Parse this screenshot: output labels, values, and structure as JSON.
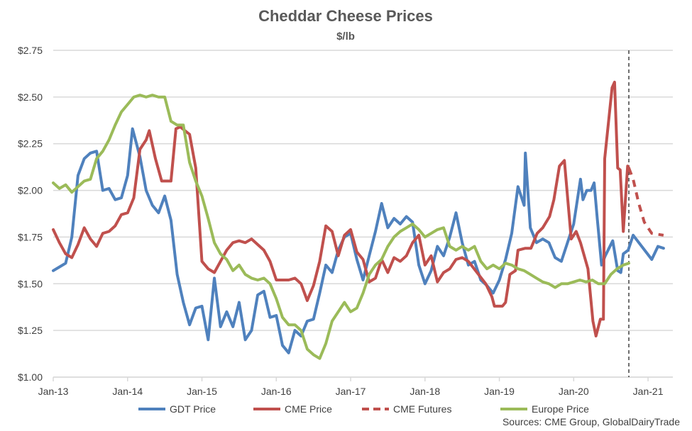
{
  "chart_data": {
    "type": "line",
    "title": "Cheddar Cheese Prices",
    "subtitle": "$/lb",
    "xlabel": "",
    "ylabel": "",
    "x_unit": "months since Jan-13",
    "xlim": [
      0,
      100
    ],
    "ylim": [
      1.0,
      2.75
    ],
    "grid": true,
    "legend_position": "bottom",
    "source": "Sources:  CME Group, GlobalDairyTrade",
    "x_ticks": [
      {
        "m": 0,
        "label": "Jan-13"
      },
      {
        "m": 12,
        "label": "Jan-14"
      },
      {
        "m": 24,
        "label": "Jan-15"
      },
      {
        "m": 36,
        "label": "Jan-16"
      },
      {
        "m": 48,
        "label": "Jan-17"
      },
      {
        "m": 60,
        "label": "Jan-18"
      },
      {
        "m": 72,
        "label": "Jan-19"
      },
      {
        "m": 84,
        "label": "Jan-20"
      },
      {
        "m": 96,
        "label": "Jan-21"
      }
    ],
    "y_ticks": [
      {
        "v": 1.0,
        "label": "$1.00"
      },
      {
        "v": 1.25,
        "label": "$1.25"
      },
      {
        "v": 1.5,
        "label": "$1.50"
      },
      {
        "v": 1.75,
        "label": "$1.75"
      },
      {
        "v": 2.0,
        "label": "$2.00"
      },
      {
        "v": 2.25,
        "label": "$2.25"
      },
      {
        "v": 2.5,
        "label": "$2.50"
      },
      {
        "v": 2.75,
        "label": "$2.75"
      }
    ],
    "forecast_divider_m": 92.9,
    "series": [
      {
        "name": "GDT Price",
        "color": "#4F81BD",
        "dashed": false,
        "points": [
          [
            0,
            1.57
          ],
          [
            1,
            1.59
          ],
          [
            2,
            1.61
          ],
          [
            3,
            1.75
          ],
          [
            4,
            2.08
          ],
          [
            5,
            2.17
          ],
          [
            6,
            2.2
          ],
          [
            7,
            2.21
          ],
          [
            8,
            2.0
          ],
          [
            9,
            2.01
          ],
          [
            10,
            1.95
          ],
          [
            11,
            1.96
          ],
          [
            12,
            2.08
          ],
          [
            12.8,
            2.33
          ],
          [
            14,
            2.18
          ],
          [
            15,
            2.0
          ],
          [
            16,
            1.92
          ],
          [
            17,
            1.88
          ],
          [
            18,
            1.97
          ],
          [
            19,
            1.84
          ],
          [
            20,
            1.55
          ],
          [
            21,
            1.4
          ],
          [
            22,
            1.28
          ],
          [
            23,
            1.37
          ],
          [
            24,
            1.38
          ],
          [
            25,
            1.2
          ],
          [
            26,
            1.53
          ],
          [
            27,
            1.27
          ],
          [
            28,
            1.35
          ],
          [
            29,
            1.27
          ],
          [
            30,
            1.4
          ],
          [
            31,
            1.2
          ],
          [
            32,
            1.25
          ],
          [
            33,
            1.44
          ],
          [
            34,
            1.46
          ],
          [
            35,
            1.32
          ],
          [
            36,
            1.33
          ],
          [
            37,
            1.17
          ],
          [
            38,
            1.13
          ],
          [
            39,
            1.25
          ],
          [
            40,
            1.22
          ],
          [
            41,
            1.3
          ],
          [
            42,
            1.31
          ],
          [
            43,
            1.45
          ],
          [
            44,
            1.6
          ],
          [
            45,
            1.56
          ],
          [
            46,
            1.68
          ],
          [
            47,
            1.75
          ],
          [
            48,
            1.77
          ],
          [
            49,
            1.63
          ],
          [
            50,
            1.52
          ],
          [
            51,
            1.65
          ],
          [
            52,
            1.78
          ],
          [
            53,
            1.93
          ],
          [
            54,
            1.8
          ],
          [
            55,
            1.85
          ],
          [
            56,
            1.82
          ],
          [
            57,
            1.86
          ],
          [
            58,
            1.83
          ],
          [
            59,
            1.6
          ],
          [
            60,
            1.5
          ],
          [
            61,
            1.57
          ],
          [
            62,
            1.7
          ],
          [
            63,
            1.65
          ],
          [
            64,
            1.75
          ],
          [
            65,
            1.88
          ],
          [
            66,
            1.72
          ],
          [
            67,
            1.6
          ],
          [
            68,
            1.62
          ],
          [
            69,
            1.52
          ],
          [
            70,
            1.49
          ],
          [
            71,
            1.45
          ],
          [
            72,
            1.52
          ],
          [
            73,
            1.63
          ],
          [
            74,
            1.77
          ],
          [
            75,
            2.02
          ],
          [
            76,
            1.92
          ],
          [
            76.2,
            2.2
          ],
          [
            77,
            1.8
          ],
          [
            78,
            1.72
          ],
          [
            79,
            1.74
          ],
          [
            80,
            1.72
          ],
          [
            81,
            1.64
          ],
          [
            82,
            1.62
          ],
          [
            83,
            1.72
          ],
          [
            84,
            1.82
          ],
          [
            85.1,
            2.06
          ],
          [
            85.5,
            1.95
          ],
          [
            86.1,
            2.0
          ],
          [
            86.8,
            2.0
          ],
          [
            87.3,
            2.04
          ],
          [
            87.8,
            1.85
          ],
          [
            88.5,
            1.6
          ],
          [
            89.1,
            1.65
          ],
          [
            90.3,
            1.73
          ],
          [
            91.1,
            1.57
          ],
          [
            91.6,
            1.56
          ],
          [
            92,
            1.66
          ],
          [
            92.8,
            1.68
          ],
          [
            93.6,
            1.76
          ],
          [
            96.6,
            1.63
          ],
          [
            97.6,
            1.7
          ],
          [
            98.5,
            1.69
          ]
        ]
      },
      {
        "name": "CME Price",
        "color": "#C0504D",
        "dashed": false,
        "points": [
          [
            0,
            1.79
          ],
          [
            1,
            1.72
          ],
          [
            2,
            1.66
          ],
          [
            3,
            1.64
          ],
          [
            4,
            1.71
          ],
          [
            5,
            1.8
          ],
          [
            6,
            1.74
          ],
          [
            7,
            1.7
          ],
          [
            8,
            1.77
          ],
          [
            9,
            1.78
          ],
          [
            10,
            1.81
          ],
          [
            11,
            1.87
          ],
          [
            12,
            1.88
          ],
          [
            13,
            1.96
          ],
          [
            14,
            2.22
          ],
          [
            15,
            2.27
          ],
          [
            15.5,
            2.32
          ],
          [
            16.5,
            2.17
          ],
          [
            17.5,
            2.05
          ],
          [
            19,
            2.05
          ],
          [
            19.8,
            2.33
          ],
          [
            20.5,
            2.34
          ],
          [
            22,
            2.3
          ],
          [
            23,
            2.12
          ],
          [
            24,
            1.62
          ],
          [
            25,
            1.58
          ],
          [
            26,
            1.56
          ],
          [
            27,
            1.62
          ],
          [
            28,
            1.68
          ],
          [
            29,
            1.72
          ],
          [
            30,
            1.73
          ],
          [
            31,
            1.72
          ],
          [
            32,
            1.74
          ],
          [
            33,
            1.71
          ],
          [
            34,
            1.68
          ],
          [
            35,
            1.62
          ],
          [
            36,
            1.52
          ],
          [
            37,
            1.52
          ],
          [
            38,
            1.52
          ],
          [
            39,
            1.53
          ],
          [
            40,
            1.5
          ],
          [
            41,
            1.41
          ],
          [
            42,
            1.49
          ],
          [
            43,
            1.62
          ],
          [
            44,
            1.81
          ],
          [
            45,
            1.78
          ],
          [
            46,
            1.65
          ],
          [
            47,
            1.76
          ],
          [
            48,
            1.79
          ],
          [
            49,
            1.67
          ],
          [
            50,
            1.63
          ],
          [
            51,
            1.51
          ],
          [
            52,
            1.53
          ],
          [
            53,
            1.63
          ],
          [
            54,
            1.56
          ],
          [
            55,
            1.64
          ],
          [
            56,
            1.62
          ],
          [
            57,
            1.65
          ],
          [
            58,
            1.72
          ],
          [
            59,
            1.76
          ],
          [
            60,
            1.6
          ],
          [
            61,
            1.65
          ],
          [
            62,
            1.51
          ],
          [
            63,
            1.56
          ],
          [
            64,
            1.58
          ],
          [
            65,
            1.63
          ],
          [
            66,
            1.64
          ],
          [
            67,
            1.62
          ],
          [
            69.8,
            1.5
          ],
          [
            70.8,
            1.43
          ],
          [
            71.2,
            1.38
          ],
          [
            72.5,
            1.38
          ],
          [
            73,
            1.4
          ],
          [
            73.7,
            1.55
          ],
          [
            74.6,
            1.57
          ],
          [
            75,
            1.68
          ],
          [
            76.2,
            1.69
          ],
          [
            77.1,
            1.69
          ],
          [
            78.1,
            1.77
          ],
          [
            79,
            1.8
          ],
          [
            80.1,
            1.86
          ],
          [
            80.8,
            1.95
          ],
          [
            81.7,
            2.13
          ],
          [
            82.5,
            2.16
          ],
          [
            83.6,
            1.74
          ],
          [
            84.4,
            1.78
          ],
          [
            85.1,
            1.72
          ],
          [
            86.3,
            1.58
          ],
          [
            87.1,
            1.3
          ],
          [
            87.6,
            1.22
          ],
          [
            88.3,
            1.31
          ],
          [
            88.8,
            1.31
          ],
          [
            89,
            2.17
          ],
          [
            90.2,
            2.55
          ],
          [
            90.6,
            2.58
          ],
          [
            91.1,
            2.12
          ],
          [
            91.5,
            2.11
          ],
          [
            92,
            1.78
          ],
          [
            92.7,
            2.13
          ],
          [
            92.9,
            2.12
          ]
        ]
      },
      {
        "name": "CME Futures",
        "color": "#C0504D",
        "dashed": true,
        "points": [
          [
            92.9,
            2.12
          ],
          [
            93.6,
            2.06
          ],
          [
            94.5,
            1.93
          ],
          [
            95.4,
            1.83
          ],
          [
            96.6,
            1.77
          ],
          [
            98.5,
            1.76
          ]
        ]
      },
      {
        "name": "Europe Price",
        "color": "#9BBB59",
        "dashed": false,
        "points": [
          [
            0,
            2.04
          ],
          [
            1,
            2.01
          ],
          [
            2,
            2.03
          ],
          [
            3,
            1.99
          ],
          [
            4,
            2.02
          ],
          [
            5,
            2.05
          ],
          [
            6,
            2.06
          ],
          [
            7,
            2.17
          ],
          [
            8,
            2.21
          ],
          [
            9,
            2.27
          ],
          [
            10,
            2.35
          ],
          [
            11,
            2.42
          ],
          [
            12,
            2.46
          ],
          [
            13,
            2.5
          ],
          [
            14,
            2.51
          ],
          [
            15,
            2.5
          ],
          [
            16,
            2.51
          ],
          [
            17,
            2.5
          ],
          [
            18,
            2.5
          ],
          [
            19,
            2.37
          ],
          [
            20,
            2.35
          ],
          [
            21,
            2.35
          ],
          [
            22,
            2.15
          ],
          [
            23,
            2.05
          ],
          [
            24,
            1.97
          ],
          [
            25,
            1.85
          ],
          [
            26,
            1.72
          ],
          [
            27,
            1.66
          ],
          [
            28,
            1.63
          ],
          [
            29,
            1.57
          ],
          [
            30,
            1.6
          ],
          [
            31,
            1.55
          ],
          [
            32,
            1.53
          ],
          [
            33,
            1.52
          ],
          [
            34,
            1.53
          ],
          [
            35,
            1.5
          ],
          [
            36,
            1.42
          ],
          [
            37,
            1.32
          ],
          [
            38,
            1.28
          ],
          [
            39,
            1.28
          ],
          [
            40,
            1.25
          ],
          [
            41,
            1.15
          ],
          [
            42,
            1.12
          ],
          [
            43,
            1.1
          ],
          [
            44,
            1.18
          ],
          [
            45,
            1.3
          ],
          [
            46,
            1.35
          ],
          [
            47,
            1.4
          ],
          [
            48,
            1.35
          ],
          [
            49,
            1.37
          ],
          [
            50,
            1.45
          ],
          [
            51,
            1.55
          ],
          [
            52,
            1.6
          ],
          [
            53,
            1.63
          ],
          [
            54,
            1.7
          ],
          [
            55,
            1.75
          ],
          [
            56,
            1.78
          ],
          [
            57,
            1.8
          ],
          [
            58,
            1.82
          ],
          [
            59,
            1.79
          ],
          [
            60,
            1.75
          ],
          [
            61,
            1.77
          ],
          [
            62,
            1.79
          ],
          [
            63,
            1.8
          ],
          [
            64,
            1.7
          ],
          [
            65,
            1.68
          ],
          [
            66,
            1.7
          ],
          [
            67,
            1.68
          ],
          [
            68,
            1.7
          ],
          [
            69,
            1.62
          ],
          [
            70,
            1.58
          ],
          [
            71,
            1.6
          ],
          [
            72,
            1.58
          ],
          [
            73,
            1.61
          ],
          [
            74,
            1.6
          ],
          [
            75,
            1.58
          ],
          [
            76,
            1.57
          ],
          [
            77,
            1.55
          ],
          [
            78,
            1.53
          ],
          [
            79,
            1.51
          ],
          [
            80,
            1.5
          ],
          [
            81,
            1.48
          ],
          [
            82,
            1.5
          ],
          [
            83,
            1.5
          ],
          [
            84,
            1.51
          ],
          [
            85,
            1.52
          ],
          [
            86,
            1.51
          ],
          [
            87,
            1.52
          ],
          [
            88,
            1.5
          ],
          [
            89,
            1.5
          ],
          [
            90,
            1.55
          ],
          [
            91,
            1.58
          ],
          [
            92,
            1.6
          ],
          [
            92.9,
            1.61
          ]
        ]
      }
    ]
  }
}
